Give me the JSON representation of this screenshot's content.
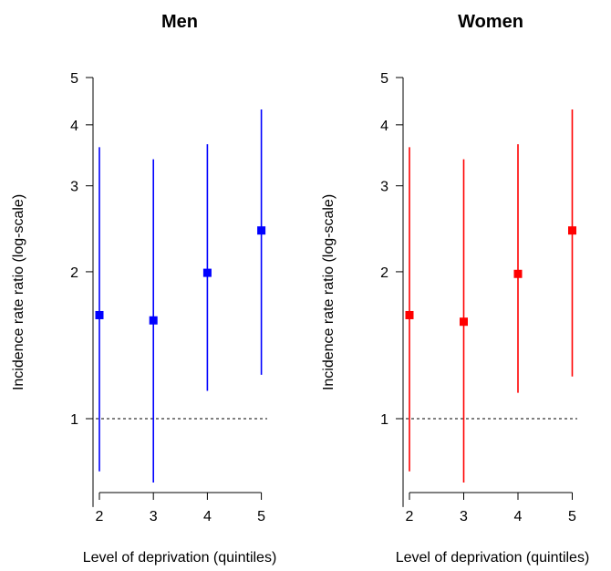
{
  "colors": {
    "men": "#0000ff",
    "women": "#ff0000",
    "axis": "#000000",
    "reference": "#000000"
  },
  "chart_data": [
    {
      "type": "scatter",
      "title": "Men",
      "xlabel": "Level of deprivation (quintiles)",
      "ylabel": "Incidence rate ratio (log-scale)",
      "y_scale": "log",
      "x_ticks": [
        "2",
        "3",
        "4",
        "5"
      ],
      "y_ticks": [
        "1",
        "2",
        "3",
        "4",
        "5"
      ],
      "ylim": [
        0.7,
        5
      ],
      "reference_line": 1,
      "series": [
        {
          "x": [
            2,
            3,
            4,
            5
          ],
          "y": [
            1.63,
            1.59,
            1.99,
            2.43
          ],
          "lower": [
            0.78,
            0.74,
            1.14,
            1.23
          ],
          "upper": [
            3.6,
            3.4,
            3.65,
            4.3
          ]
        }
      ]
    },
    {
      "type": "scatter",
      "title": "Women",
      "xlabel": "Level of deprivation (quintiles)",
      "ylabel": "Incidence rate ratio (log-scale)",
      "y_scale": "log",
      "x_ticks": [
        "2",
        "3",
        "4",
        "5"
      ],
      "y_ticks": [
        "1",
        "2",
        "3",
        "4",
        "5"
      ],
      "ylim": [
        0.7,
        5
      ],
      "reference_line": 1,
      "series": [
        {
          "x": [
            2,
            3,
            4,
            5
          ],
          "y": [
            1.63,
            1.58,
            1.98,
            2.43
          ],
          "lower": [
            0.78,
            0.74,
            1.13,
            1.22
          ],
          "upper": [
            3.6,
            3.4,
            3.65,
            4.3
          ]
        }
      ]
    }
  ]
}
